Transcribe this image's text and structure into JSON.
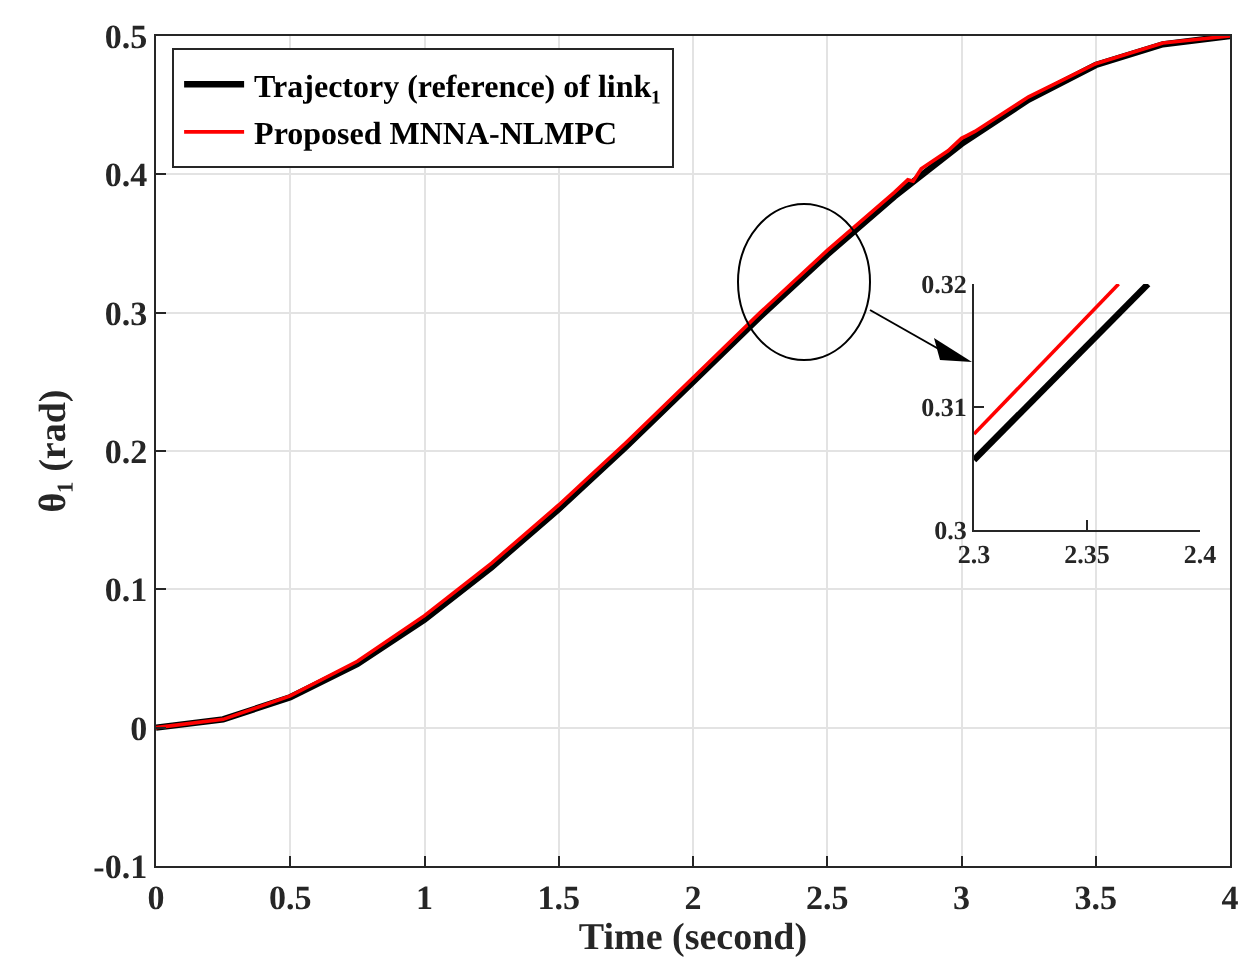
{
  "chart_data": [
    {
      "type": "line",
      "xlabel": "Time (second)",
      "ylabel": "θ₁ (rad)",
      "xlim": [
        0,
        4
      ],
      "ylim": [
        -0.1,
        0.5
      ],
      "xticks": [
        0,
        0.5,
        1,
        1.5,
        2,
        2.5,
        3,
        3.5,
        4
      ],
      "yticks": [
        -0.1,
        0,
        0.1,
        0.2,
        0.3,
        0.4,
        0.5
      ],
      "grid": true,
      "legend": "top left",
      "series": [
        {
          "name": "Trajectory (reference) of link₁",
          "color": "#000000",
          "x": [
            0,
            0.25,
            0.5,
            0.75,
            1,
            1.25,
            1.5,
            1.75,
            2,
            2.25,
            2.5,
            2.75,
            3,
            3.25,
            3.5,
            3.75,
            4
          ],
          "values": [
            0,
            0.006,
            0.022,
            0.046,
            0.078,
            0.116,
            0.158,
            0.203,
            0.25,
            0.297,
            0.342,
            0.384,
            0.422,
            0.454,
            0.479,
            0.494,
            0.5
          ]
        },
        {
          "name": "Proposed MNNA-NLMPC",
          "color": "#ff0000",
          "x": [
            0,
            0.25,
            0.5,
            0.75,
            1,
            1.25,
            1.5,
            1.75,
            2,
            2.25,
            2.5,
            2.75,
            2.8,
            2.82,
            2.85,
            2.95,
            3,
            3.02,
            3.05,
            3.25,
            3.5,
            3.75,
            4
          ],
          "values": [
            0,
            0.006,
            0.023,
            0.048,
            0.081,
            0.119,
            0.161,
            0.206,
            0.253,
            0.3,
            0.345,
            0.387,
            0.396,
            0.395,
            0.404,
            0.417,
            0.426,
            0.428,
            0.431,
            0.456,
            0.48,
            0.495,
            0.5
          ]
        }
      ]
    },
    {
      "type": "line",
      "xlim": [
        2.3,
        2.4
      ],
      "ylim": [
        0.3,
        0.32
      ],
      "xticks": [
        2.3,
        2.35,
        2.4
      ],
      "yticks": [
        0.3,
        0.31,
        0.32
      ],
      "series": [
        {
          "color": "#000000",
          "x": [
            2.3,
            2.377
          ],
          "values": [
            0.3057,
            0.32
          ]
        },
        {
          "color": "#ff0000",
          "x": [
            2.3,
            2.364
          ],
          "values": [
            0.3078,
            0.32
          ]
        }
      ]
    }
  ]
}
